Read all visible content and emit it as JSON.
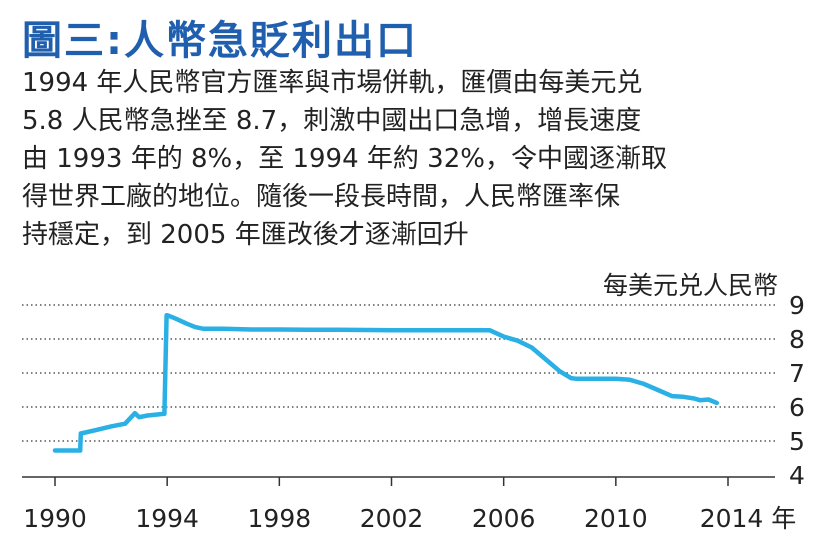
{
  "colors": {
    "accent": "#1f5fae",
    "line": "#2ab0e5",
    "grid": "#555555"
  },
  "title": "圖三:人幣急貶利出口",
  "body_lines": [
    "1994 年人民幣官方匯率與市場併軌，匯價由每美元兑",
    "5.8 人民幣急挫至 8.7，刺激中國出口急增，增長速度",
    "由 1993 年的 8%，至 1994 年約 32%，令中國逐漸取",
    "得世界工廠的地位。隨後一段長時間，人民幣匯率保",
    "持穩定，到 2005 年匯改後才逐漸回升"
  ],
  "chart_data": {
    "type": "line",
    "title": "",
    "ylabel": "每美元兑人民幣",
    "xlabel": "",
    "x_tick_labels": [
      "1990",
      "1994",
      "1998",
      "2002",
      "2006",
      "2010",
      "2014 年"
    ],
    "x_ticks": [
      1990,
      1994,
      1998,
      2002,
      2006,
      2010,
      2014
    ],
    "y_ticks": [
      4,
      5,
      6,
      7,
      8,
      9
    ],
    "xlim": [
      1989,
      2015
    ],
    "ylim": [
      4,
      9
    ],
    "grid": "horizontal dotted",
    "series": [
      {
        "x": [
          1990.0,
          1990.9,
          1990.92,
          1991.5,
          1992.0,
          1992.5,
          1992.85,
          1993.0,
          1993.3,
          1993.9,
          1993.98,
          1994.0,
          1994.3,
          1994.7,
          1995.0,
          1995.3,
          1996.0,
          1997.0,
          1998.0,
          1999.0,
          2000.0,
          2002.0,
          2004.0,
          2005.0,
          2005.5,
          2006.0,
          2006.5,
          2007.0,
          2007.5,
          2008.0,
          2008.4,
          2008.6,
          2009.0,
          2010.0,
          2010.5,
          2011.0,
          2011.5,
          2012.0,
          2012.4,
          2012.8,
          2013.0,
          2013.3,
          2013.6
        ],
        "y": [
          4.72,
          4.72,
          5.22,
          5.33,
          5.43,
          5.51,
          5.82,
          5.7,
          5.75,
          5.8,
          8.7,
          8.7,
          8.6,
          8.45,
          8.35,
          8.3,
          8.3,
          8.28,
          8.28,
          8.27,
          8.27,
          8.26,
          8.26,
          8.26,
          8.26,
          8.07,
          7.95,
          7.75,
          7.4,
          7.05,
          6.85,
          6.83,
          6.83,
          6.83,
          6.8,
          6.68,
          6.5,
          6.32,
          6.3,
          6.25,
          6.2,
          6.22,
          6.12
        ]
      }
    ]
  }
}
